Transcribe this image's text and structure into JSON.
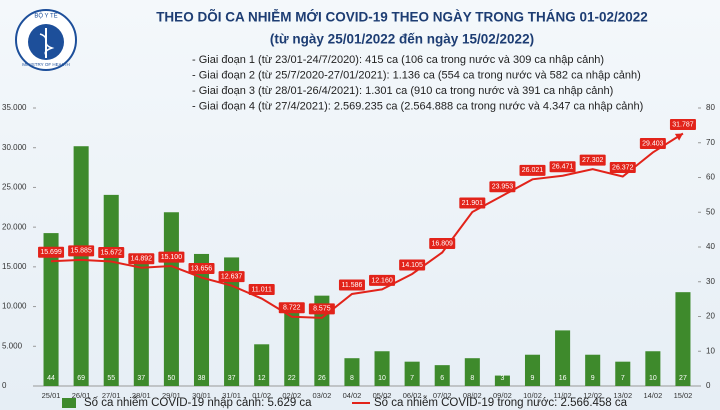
{
  "logo": {
    "top": "BỘ Y TẾ",
    "bottom": "MINISTRY OF HEALTH"
  },
  "chart_data": {
    "type": "bar-line",
    "title": "THEO DÕI CA NHIỄM MỚI COVID-19 THEO NGÀY TRONG THÁNG 01-02/2022",
    "subtitle": "(từ ngày 25/01/2022 đến ngày 15/02/2022)",
    "annotations": [
      "- Giai đoạn 1 (từ 23/01-24/7/2020): 415 ca (106 ca trong nước và 309 ca nhập cảnh)",
      "- Giai đoạn 2 (từ 25/7/2020-27/01/2021): 1.136 ca (554 ca trong nước và 582 ca nhập cảnh)",
      "- Giai đoạn 3 (từ 28/01-26/4/2021): 1.301 ca (910 ca trong nước và 391 ca nhập cảnh)",
      "- Giai đoạn 4 (từ 27/4/2021): 2.569.235 ca (2.564.888 ca trong nước và 4.347 ca nhập cảnh)"
    ],
    "categories": [
      "25/01",
      "26/01",
      "27/01",
      "28/01",
      "29/01",
      "30/01",
      "31/01",
      "01/02",
      "02/02",
      "03/02",
      "04/02",
      "05/02",
      "06/02",
      "07/02",
      "08/02",
      "09/02",
      "10/02",
      "11/02",
      "12/02",
      "13/02",
      "14/02",
      "15/02"
    ],
    "series": [
      {
        "name": "Số ca nhiễm COVID-19 nhập cảnh: 5.629 ca",
        "type": "bar",
        "axis": "y2",
        "color": "#3e8a2c",
        "values": [
          44,
          69,
          55,
          37,
          50,
          38,
          37,
          12,
          22,
          26,
          8,
          10,
          7,
          6,
          8,
          3,
          9,
          16,
          9,
          7,
          10,
          27
        ]
      },
      {
        "name": "Số ca nhiễm COVID-19 trong nước: 2.566.458 ca",
        "type": "line",
        "axis": "y",
        "color": "#e2231a",
        "values": [
          15699,
          15885,
          15672,
          14892,
          15100,
          13656,
          12637,
          11011,
          8722,
          8575,
          11586,
          12160,
          14105,
          16809,
          21901,
          23953,
          26021,
          26471,
          27302,
          26372,
          29403,
          31787
        ],
        "value_labels": [
          "15.699",
          "15.885",
          "15.672",
          "14.892",
          "15.100",
          "13.656",
          "12.637",
          "11.011",
          "8.722",
          "8.575",
          "11.586",
          "12.160",
          "14.105",
          "16.809",
          "21.901",
          "23.953",
          "26.021",
          "26.471",
          "27.302",
          "26.372",
          "29.403",
          "31.787"
        ]
      }
    ],
    "ylim": [
      0,
      35000
    ],
    "yticks": [
      0,
      {
        "value": 5000,
        "label": "5.000"
      },
      {
        "value": 10000,
        "label": "10.000"
      },
      {
        "value": 15000,
        "label": "15.000"
      },
      {
        "value": 20000,
        "label": "20.000"
      },
      {
        "value": 25000,
        "label": "25.000"
      },
      {
        "value": 30000,
        "label": "30.000"
      },
      {
        "value": 35000,
        "label": "35.000"
      }
    ],
    "y2lim": [
      0,
      80
    ],
    "y2ticks": [
      0,
      10,
      20,
      30,
      40,
      50,
      60,
      70,
      80
    ]
  }
}
